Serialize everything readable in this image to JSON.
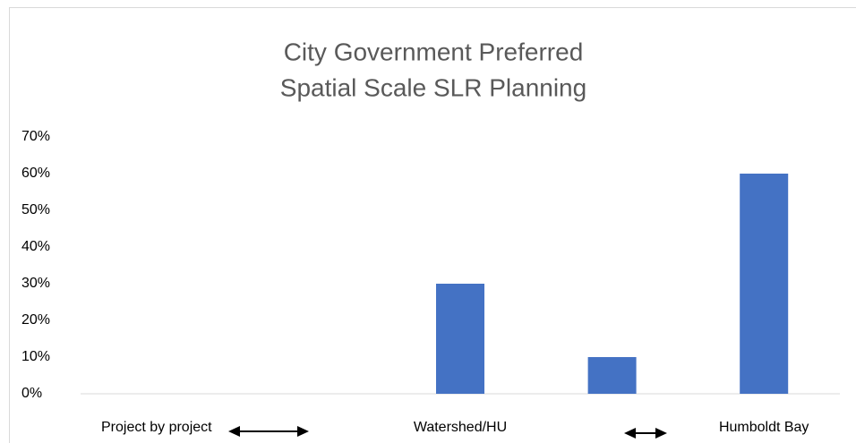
{
  "chart_data": {
    "type": "bar",
    "title": [
      "City Government Preferred",
      "Spatial Scale SLR Planning"
    ],
    "categories": [
      "Project by project",
      null,
      "Watershed/HU",
      null,
      "Humboldt Bay"
    ],
    "values": [
      0,
      0,
      30,
      10,
      60
    ],
    "color": "#4472c4",
    "ylim": [
      0,
      70
    ],
    "yticks": [
      {
        "value": 0,
        "label": "0%"
      },
      {
        "value": 10,
        "label": "10%"
      },
      {
        "value": 20,
        "label": "20%"
      },
      {
        "value": 30,
        "label": "30%"
      },
      {
        "value": 40,
        "label": "40%"
      },
      {
        "value": 50,
        "label": "50%"
      },
      {
        "value": 60,
        "label": "60%"
      },
      {
        "value": 70,
        "label": "70%"
      }
    ],
    "grid": false
  }
}
